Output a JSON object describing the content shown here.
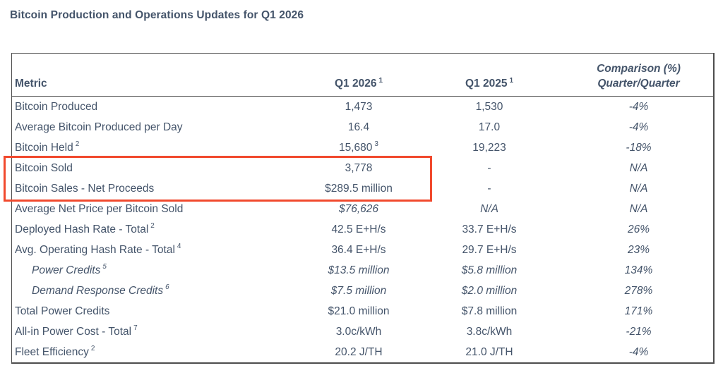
{
  "page_title": "Bitcoin Production and Operations Updates for Q1 2026",
  "colors": {
    "text": "#44546A",
    "table_border": "#4D4D4D",
    "highlight_box": "#F1492D",
    "background": "#FFFFFF"
  },
  "table": {
    "header": {
      "metric": "Metric",
      "q1_2026": "Q1 2026",
      "q1_2026_sup": "1",
      "q1_2025": "Q1 2025",
      "q1_2025_sup": "1",
      "comparison_line1": "Comparison (%)",
      "comparison_line2": "Quarter/Quarter"
    },
    "rows": [
      {
        "metric": "Bitcoin Produced",
        "metric_sup": "",
        "indent": false,
        "metric_italic": false,
        "q1_2026": "1,473",
        "q1_2026_sup": "",
        "q1_2026_italic": false,
        "q1_2025": "1,530",
        "q1_2025_italic": false,
        "comparison": "-4%",
        "highlighted": false
      },
      {
        "metric": "Average Bitcoin Produced per Day",
        "metric_sup": "",
        "indent": false,
        "metric_italic": false,
        "q1_2026": "16.4",
        "q1_2026_sup": "",
        "q1_2026_italic": false,
        "q1_2025": "17.0",
        "q1_2025_italic": false,
        "comparison": "-4%",
        "highlighted": false
      },
      {
        "metric": "Bitcoin Held",
        "metric_sup": "2",
        "indent": false,
        "metric_italic": false,
        "q1_2026": "15,680",
        "q1_2026_sup": "3",
        "q1_2026_italic": false,
        "q1_2025": "19,223",
        "q1_2025_italic": false,
        "comparison": "-18%",
        "highlighted": false
      },
      {
        "metric": "Bitcoin Sold",
        "metric_sup": "",
        "indent": false,
        "metric_italic": false,
        "q1_2026": "3,778",
        "q1_2026_sup": "",
        "q1_2026_italic": false,
        "q1_2025": "-",
        "q1_2025_italic": false,
        "comparison": "N/A",
        "highlighted": true
      },
      {
        "metric": "Bitcoin Sales - Net Proceeds",
        "metric_sup": "",
        "indent": false,
        "metric_italic": false,
        "q1_2026": "$289.5 million",
        "q1_2026_sup": "",
        "q1_2026_italic": false,
        "q1_2025": "-",
        "q1_2025_italic": false,
        "comparison": "N/A",
        "highlighted": true
      },
      {
        "metric": "Average Net Price per Bitcoin Sold",
        "metric_sup": "",
        "indent": false,
        "metric_italic": false,
        "q1_2026": "$76,626",
        "q1_2026_sup": "",
        "q1_2026_italic": true,
        "q1_2025": "N/A",
        "q1_2025_italic": true,
        "comparison": "N/A",
        "highlighted": false
      },
      {
        "metric": "Deployed Hash Rate - Total",
        "metric_sup": "2",
        "indent": false,
        "metric_italic": false,
        "q1_2026": "42.5 E+H/s",
        "q1_2026_sup": "",
        "q1_2026_italic": false,
        "q1_2025": "33.7 E+H/s",
        "q1_2025_italic": false,
        "comparison": "26%",
        "highlighted": false
      },
      {
        "metric": "Avg. Operating Hash Rate - Total",
        "metric_sup": "4",
        "indent": false,
        "metric_italic": false,
        "q1_2026": "36.4 E+H/s",
        "q1_2026_sup": "",
        "q1_2026_italic": false,
        "q1_2025": "29.7 E+H/s",
        "q1_2025_italic": false,
        "comparison": "23%",
        "highlighted": false
      },
      {
        "metric": "Power Credits",
        "metric_sup": "5",
        "indent": true,
        "metric_italic": true,
        "q1_2026": "$13.5 million",
        "q1_2026_sup": "",
        "q1_2026_italic": true,
        "q1_2025": "$5.8 million",
        "q1_2025_italic": true,
        "comparison": "134%",
        "highlighted": false
      },
      {
        "metric": "Demand Response Credits",
        "metric_sup": "6",
        "indent": true,
        "metric_italic": true,
        "q1_2026": "$7.5 million",
        "q1_2026_sup": "",
        "q1_2026_italic": true,
        "q1_2025": "$2.0 million",
        "q1_2025_italic": true,
        "comparison": "278%",
        "highlighted": false
      },
      {
        "metric": "Total Power Credits",
        "metric_sup": "",
        "indent": false,
        "metric_italic": false,
        "q1_2026": "$21.0 million",
        "q1_2026_sup": "",
        "q1_2026_italic": false,
        "q1_2025": "$7.8 million",
        "q1_2025_italic": false,
        "comparison": "171%",
        "highlighted": false
      },
      {
        "metric": "All-in Power Cost - Total",
        "metric_sup": "7",
        "indent": false,
        "metric_italic": false,
        "q1_2026": "3.0c/kWh",
        "q1_2026_sup": "",
        "q1_2026_italic": false,
        "q1_2025": "3.8c/kWh",
        "q1_2025_italic": false,
        "comparison": "-21%",
        "highlighted": false
      },
      {
        "metric": "Fleet Efficiency",
        "metric_sup": "2",
        "indent": false,
        "metric_italic": false,
        "q1_2026": "20.2 J/TH",
        "q1_2026_sup": "",
        "q1_2026_italic": false,
        "q1_2025": "21.0 J/TH",
        "q1_2025_italic": false,
        "comparison": "-4%",
        "highlighted": false
      }
    ]
  }
}
